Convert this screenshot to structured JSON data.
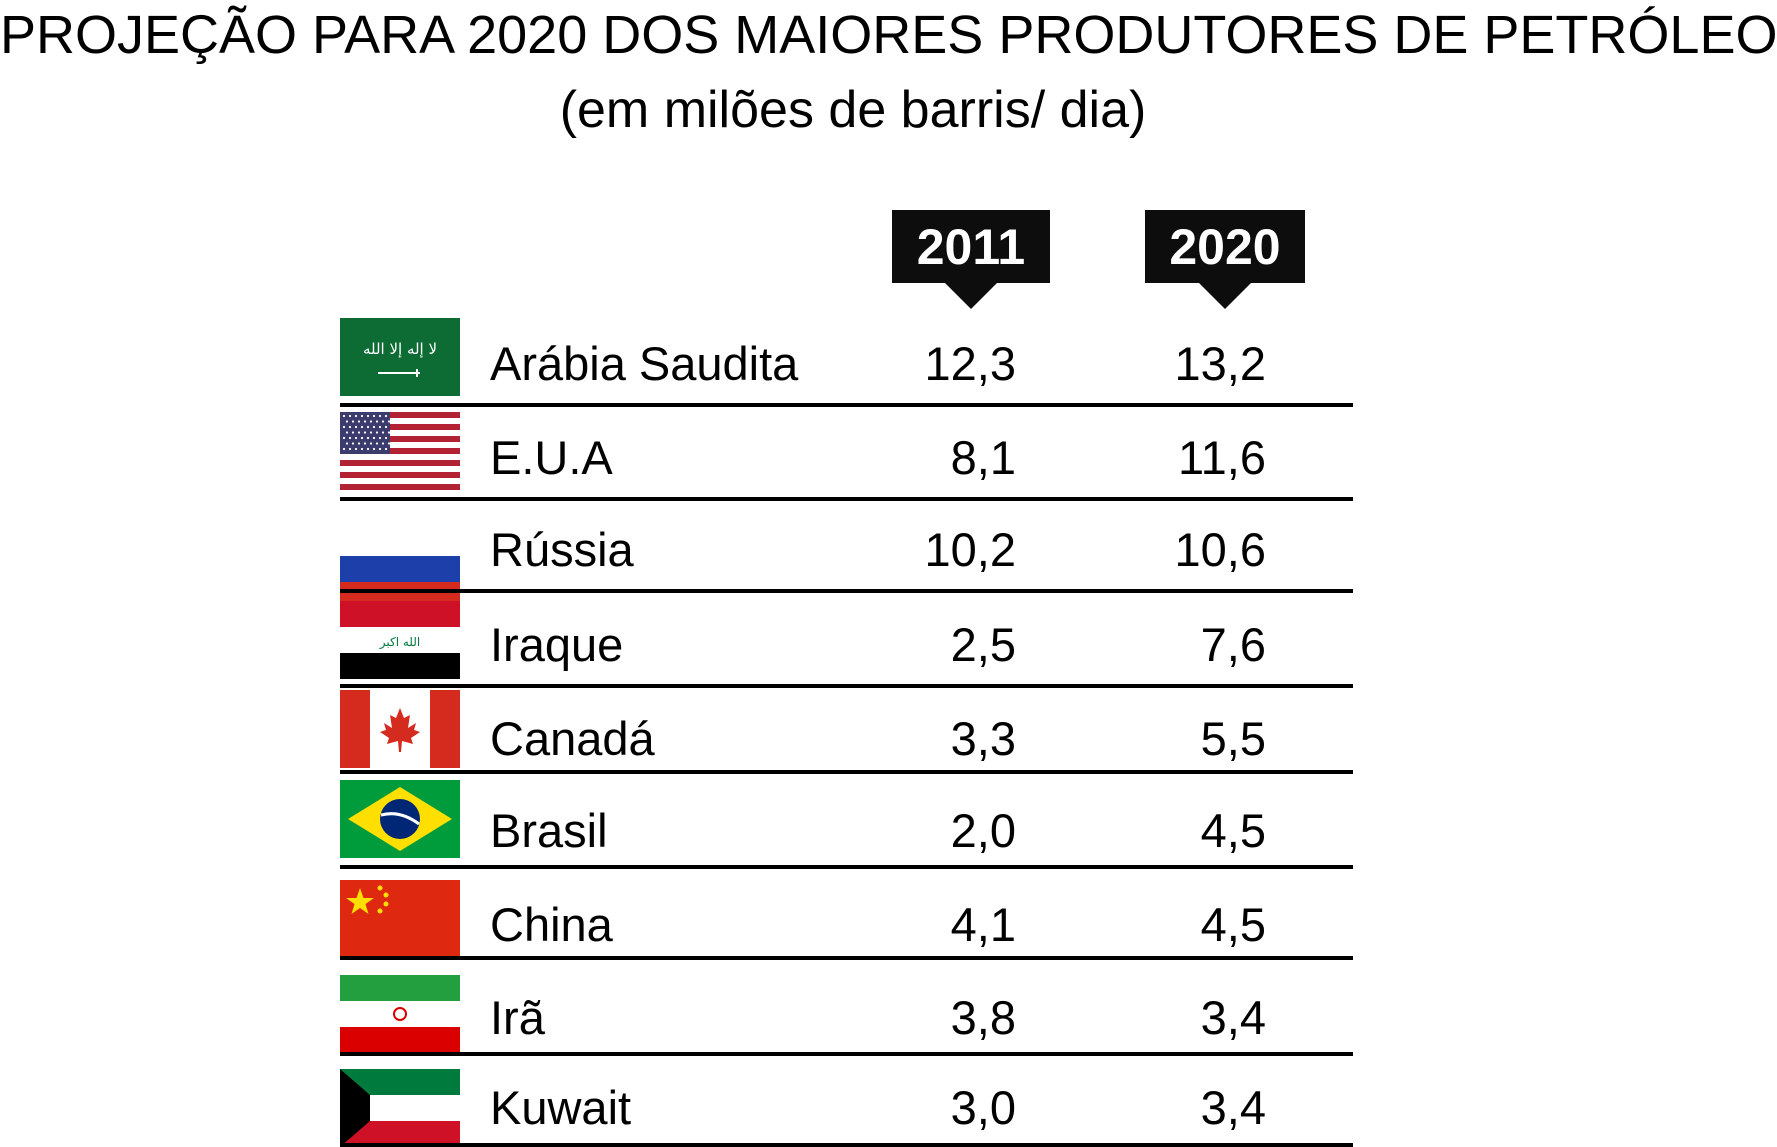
{
  "title": "PROJEÇÃO PARA 2020 DOS MAIORES PRODUTORES DE PETRÓLEO",
  "subtitle": "(em milões de barris/ dia)",
  "chart_data": {
    "type": "table",
    "title": "PROJEÇÃO PARA 2020 DOS MAIORES PRODUTORES DE PETRÓLEO",
    "subtitle": "(em milões de barris/ dia)",
    "columns": [
      "2011",
      "2020"
    ],
    "rows": [
      {
        "country": "Arábia Saudita",
        "flag": "saudi-arabia-flag",
        "v2011": "12,3",
        "v2020": "13,2"
      },
      {
        "country": "E.U.A",
        "flag": "usa-flag",
        "v2011": "8,1",
        "v2020": "11,6"
      },
      {
        "country": "Rússia",
        "flag": "russia-flag",
        "v2011": "10,2",
        "v2020": "10,6"
      },
      {
        "country": "Iraque",
        "flag": "iraq-flag",
        "v2011": "2,5",
        "v2020": "7,6"
      },
      {
        "country": "Canadá",
        "flag": "canada-flag",
        "v2011": "3,3",
        "v2020": "5,5"
      },
      {
        "country": "Brasil",
        "flag": "brazil-flag",
        "v2011": "2,0",
        "v2020": "4,5"
      },
      {
        "country": "China",
        "flag": "china-flag",
        "v2011": "4,1",
        "v2020": "4,5"
      },
      {
        "country": "Irã",
        "flag": "iran-flag",
        "v2011": "3,8",
        "v2020": "3,4"
      },
      {
        "country": "Kuwait",
        "flag": "kuwait-flag",
        "v2011": "3,0",
        "v2020": "3,4"
      }
    ]
  }
}
